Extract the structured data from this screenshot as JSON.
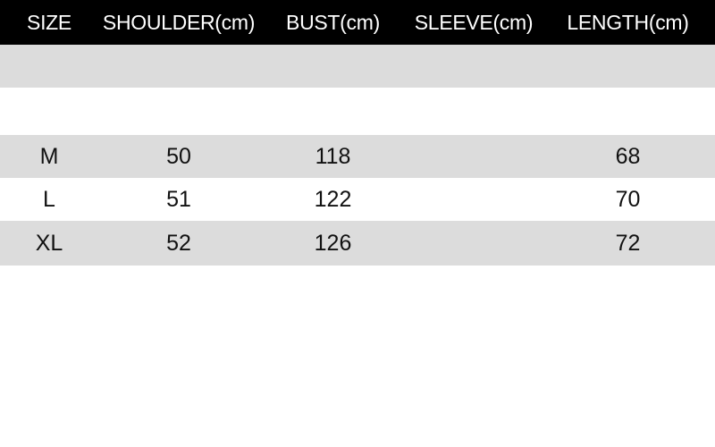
{
  "colors": {
    "header_bg": "#000000",
    "header_text": "#ffffff",
    "stripe_gray": "#dcdcdc",
    "stripe_white": "#ffffff",
    "body_text": "#111111"
  },
  "table": {
    "headers": [
      "SIZE",
      "SHOULDER(cm)",
      "BUST(cm)",
      "SLEEVE(cm)",
      "LENGTH(cm)"
    ],
    "display_rows": [
      [
        "",
        "",
        "",
        "",
        ""
      ],
      [
        "",
        "",
        "",
        "",
        ""
      ],
      [
        "M",
        "50",
        "118",
        "",
        "68"
      ],
      [
        "L",
        "51",
        "122",
        "",
        "70"
      ],
      [
        "XL",
        "52",
        "126",
        "",
        "72"
      ]
    ]
  },
  "chart_data": {
    "type": "table",
    "title": "",
    "columns": [
      "SIZE",
      "SHOULDER(cm)",
      "BUST(cm)",
      "SLEEVE(cm)",
      "LENGTH(cm)"
    ],
    "rows": [
      {
        "size": "M",
        "shoulder_cm": 50,
        "bust_cm": 118,
        "sleeve_cm": null,
        "length_cm": 68
      },
      {
        "size": "L",
        "shoulder_cm": 51,
        "bust_cm": 122,
        "sleeve_cm": null,
        "length_cm": 70
      },
      {
        "size": "XL",
        "shoulder_cm": 52,
        "bust_cm": 126,
        "sleeve_cm": null,
        "length_cm": 72
      }
    ],
    "layout_hints": {
      "header_style": "black background, white text",
      "row_striping": "alternating light-gray and white, starting with two empty rows under header",
      "sleeve_column_empty": true,
      "cell_alignment": "center"
    }
  }
}
